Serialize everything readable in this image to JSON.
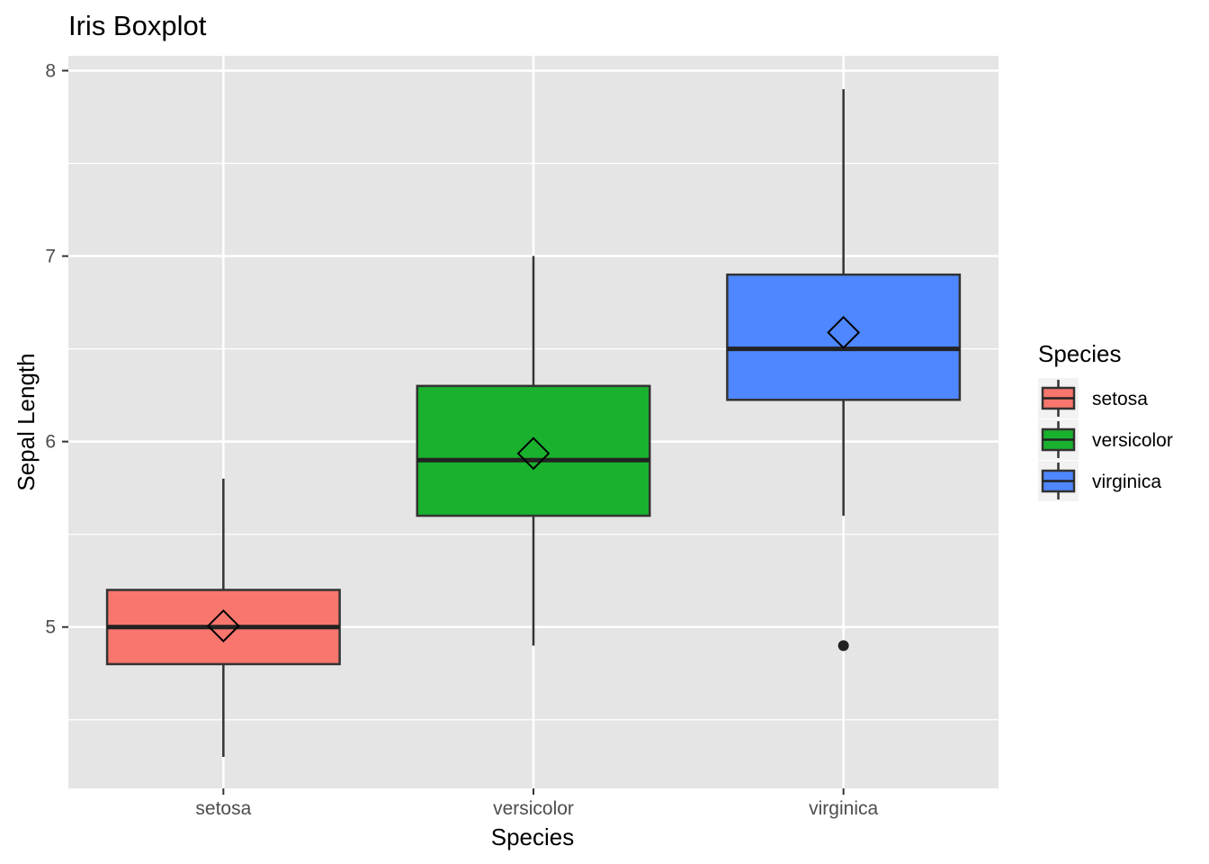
{
  "chart_data": {
    "type": "boxplot",
    "title": "Iris Boxplot",
    "xlabel": "Species",
    "ylabel": "Sepal Length",
    "categories": [
      "setosa",
      "versicolor",
      "virginica"
    ],
    "yticks": [
      5,
      6,
      7,
      8
    ],
    "ylim": [
      4.13,
      8.08
    ],
    "grid": true,
    "legend": {
      "title": "Species",
      "position": "right",
      "items": [
        "setosa",
        "versicolor",
        "virginica"
      ]
    },
    "colors": {
      "setosa": "#F8766D",
      "versicolor": "#1AB12E",
      "virginica": "#4E87FF",
      "panel": "#E5E5E5",
      "grid": "#FFFFFF"
    },
    "boxes": [
      {
        "name": "setosa",
        "min": 4.3,
        "q1": 4.8,
        "median": 5.0,
        "q3": 5.2,
        "max": 5.8,
        "mean": 5.006,
        "outliers": []
      },
      {
        "name": "versicolor",
        "min": 4.9,
        "q1": 5.6,
        "median": 5.9,
        "q3": 6.3,
        "max": 7.0,
        "mean": 5.936,
        "outliers": []
      },
      {
        "name": "virginica",
        "min": 5.6,
        "q1": 6.225,
        "median": 6.5,
        "q3": 6.9,
        "max": 7.9,
        "mean": 6.588,
        "outliers": [
          4.9
        ]
      }
    ]
  }
}
